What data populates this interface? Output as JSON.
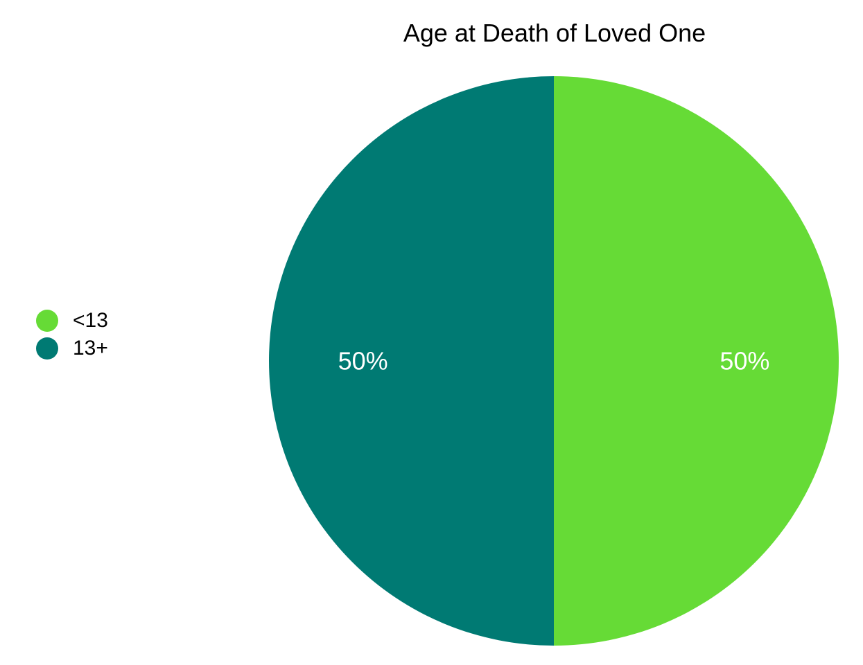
{
  "chart_data": {
    "type": "pie",
    "title": "Age at Death of Loved One",
    "legend_placement": "left",
    "slices": [
      {
        "label": "<13",
        "value": 50,
        "display": "50%",
        "color": "#66DB36"
      },
      {
        "label": "13+",
        "value": 50,
        "display": "50%",
        "color": "#007A73"
      }
    ]
  }
}
